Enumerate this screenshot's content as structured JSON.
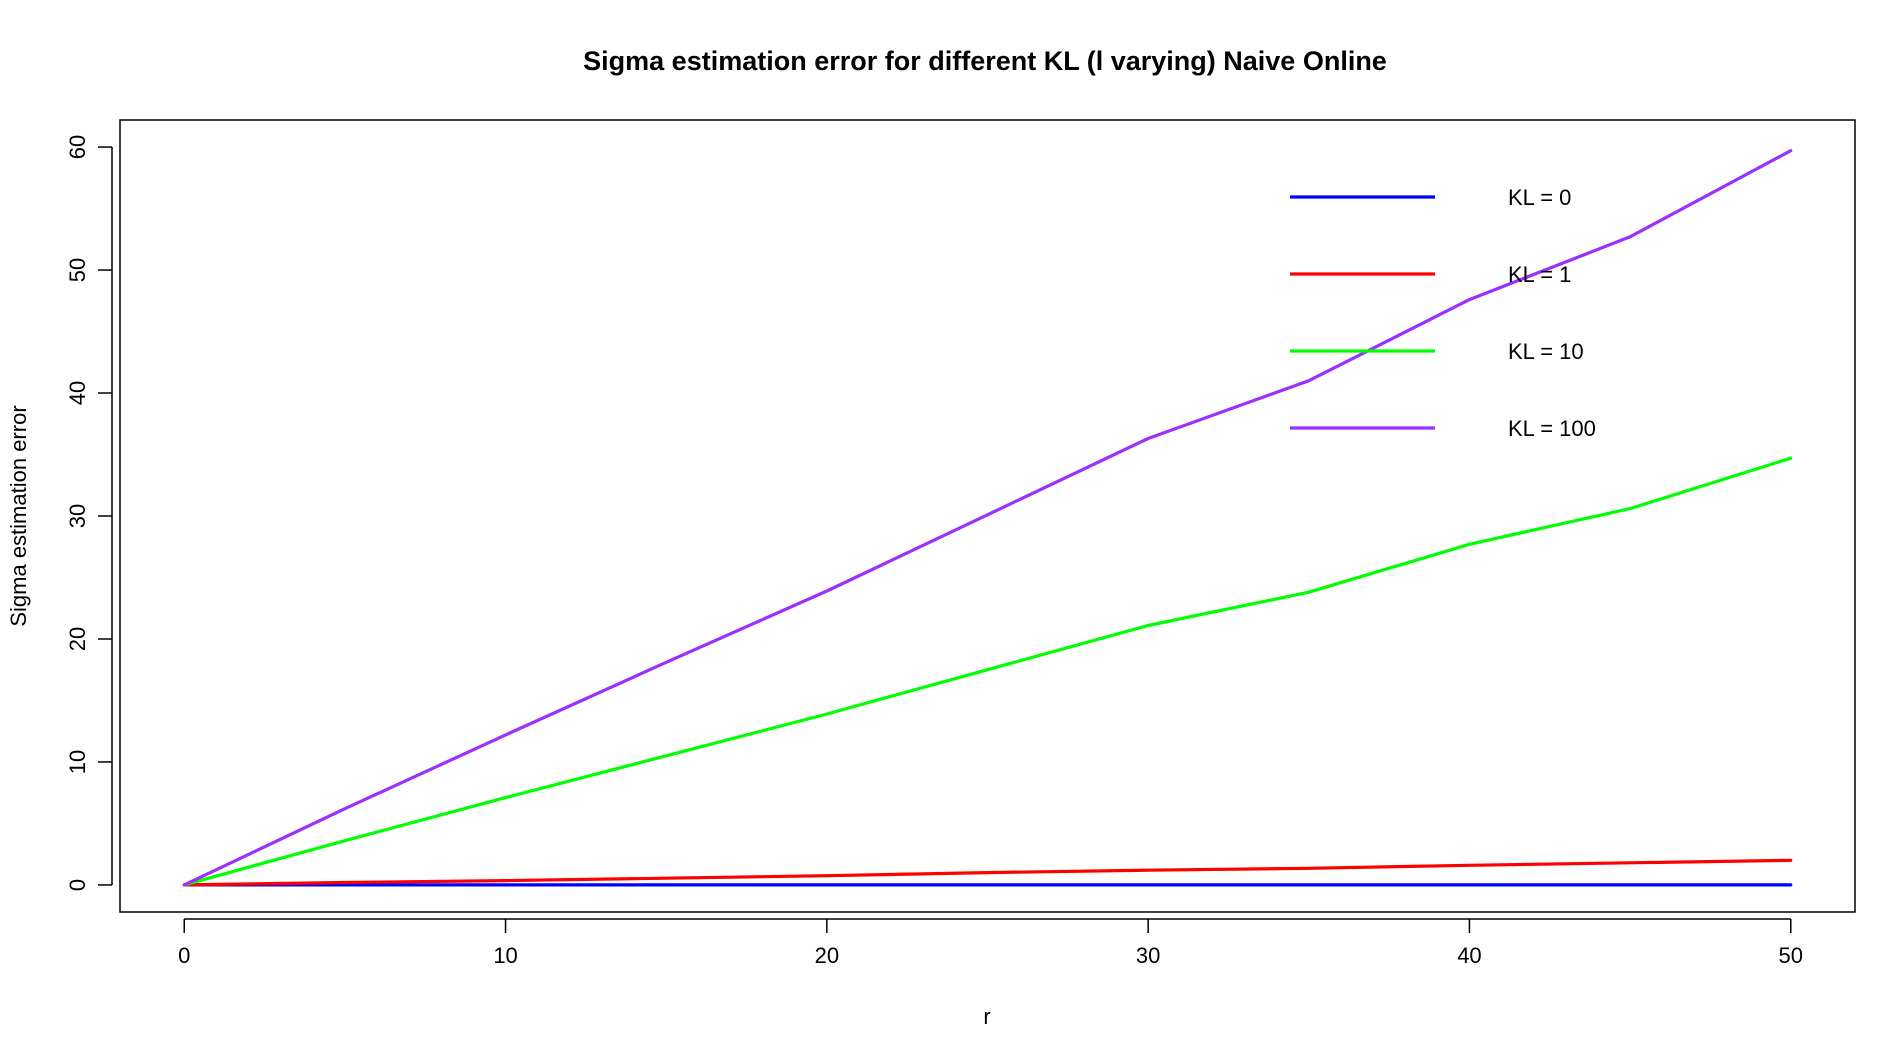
{
  "chart_data": {
    "type": "line",
    "title": "Sigma estimation error for different KL (l varying) Naive Online",
    "xlabel": "r",
    "ylabel": "Sigma estimation error",
    "xlim": [
      -2,
      52
    ],
    "ylim": [
      -2.2,
      62.2
    ],
    "xticks": [
      0,
      10,
      20,
      30,
      40,
      50
    ],
    "yticks": [
      0,
      10,
      20,
      30,
      40,
      50,
      60
    ],
    "grid": false,
    "legend_position": "top-right",
    "x": [
      0,
      5,
      10,
      15,
      20,
      25,
      30,
      35,
      40,
      45,
      50
    ],
    "series": [
      {
        "name": "KL = 0",
        "color": "#0000FF",
        "values": [
          0,
          0,
          0,
          0,
          0,
          0,
          0,
          0,
          0,
          0,
          0
        ]
      },
      {
        "name": "KL = 1",
        "color": "#FF0000",
        "values": [
          0,
          0.2,
          0.35,
          0.55,
          0.75,
          1.0,
          1.2,
          1.35,
          1.6,
          1.8,
          2.0
        ]
      },
      {
        "name": "KL = 10",
        "color": "#00FF00",
        "values": [
          0,
          3.6,
          7.1,
          10.5,
          13.9,
          17.5,
          21.1,
          23.8,
          27.7,
          30.6,
          34.7
        ]
      },
      {
        "name": "KL = 100",
        "color": "#9B30FF",
        "values": [
          0,
          6.2,
          12.2,
          18.1,
          23.9,
          30.1,
          36.3,
          41.0,
          47.6,
          52.7,
          59.7
        ]
      }
    ]
  }
}
